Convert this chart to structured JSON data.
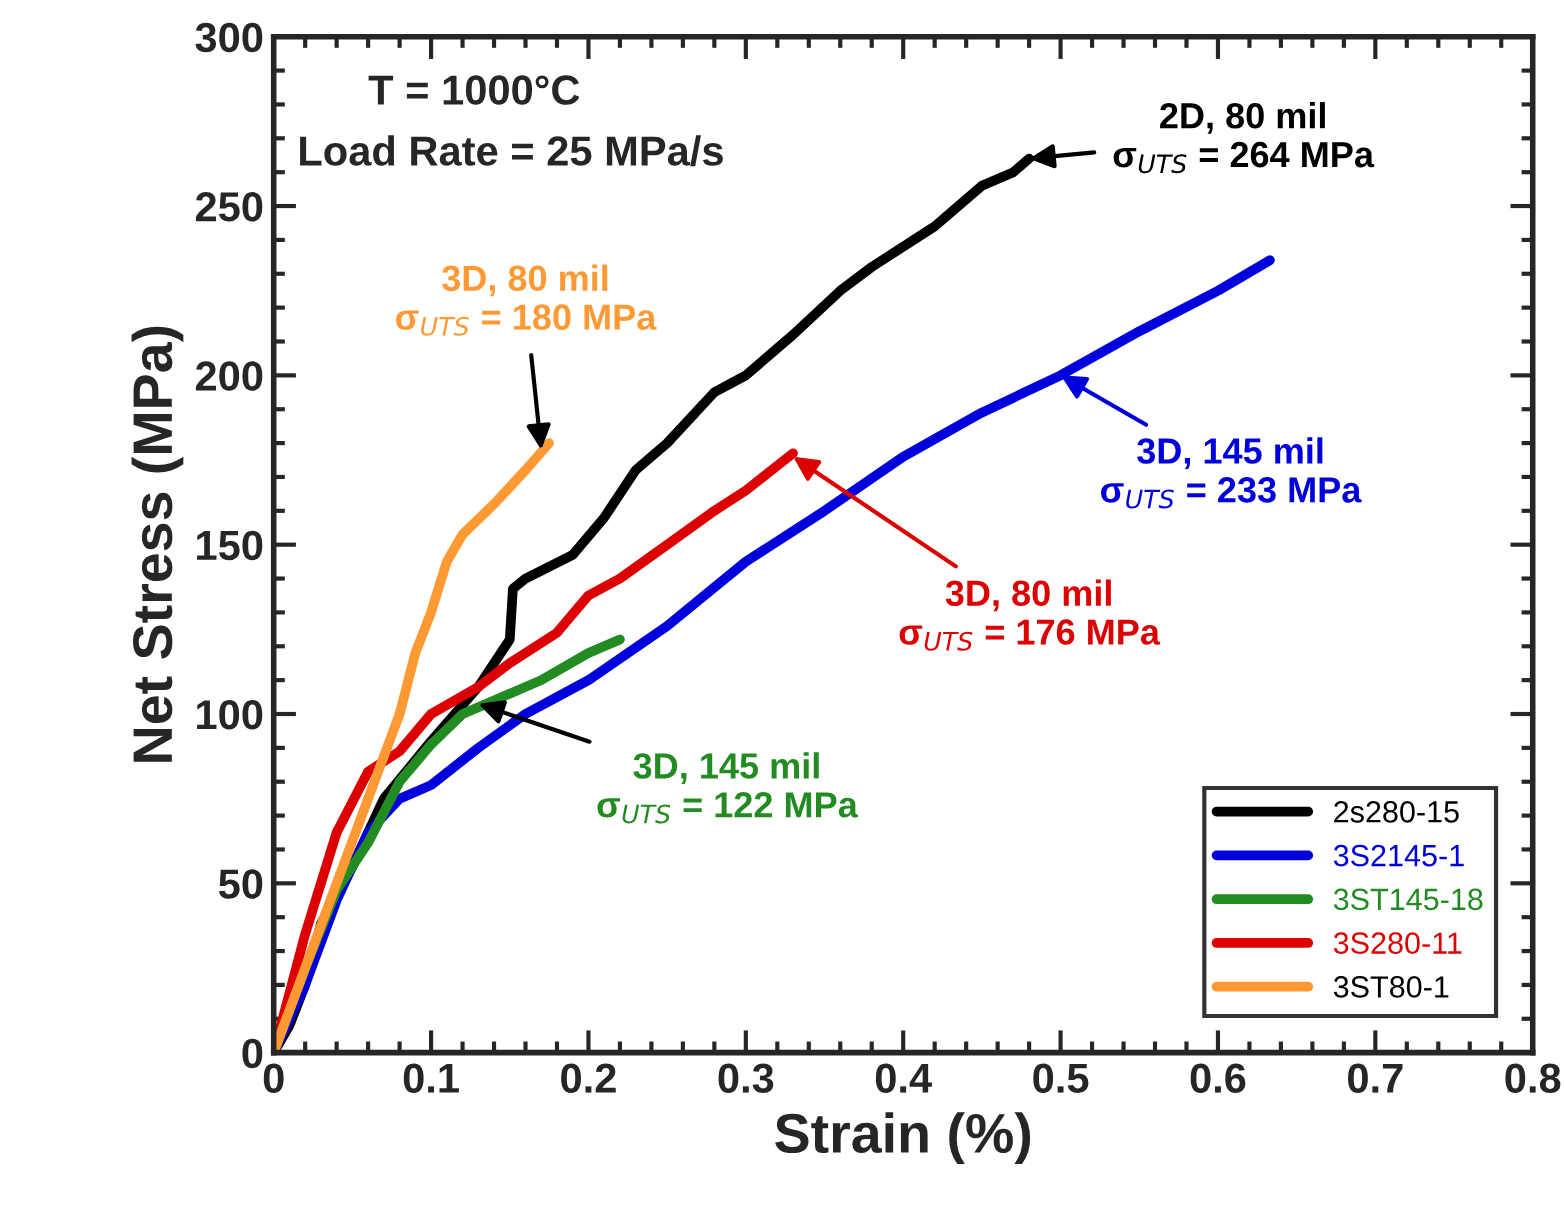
{
  "chart_data": {
    "type": "line",
    "xlabel": "Strain (%)",
    "ylabel": "Net Stress (MPa)",
    "xlim": [
      0,
      0.8
    ],
    "ylim": [
      0,
      300
    ],
    "xticks": [
      0,
      0.1,
      0.2,
      0.3,
      0.4,
      0.5,
      0.6,
      0.7,
      0.8
    ],
    "yticks": [
      0,
      50,
      100,
      150,
      200,
      250,
      300
    ],
    "grid": false,
    "legend": "bottom right",
    "marker": "none",
    "line_style": "solid",
    "series": [
      {
        "name": "2s280-15",
        "color": "#000000",
        "x": [
          0,
          0.01,
          0.02,
          0.03,
          0.05,
          0.07,
          0.1,
          0.13,
          0.15,
          0.152,
          0.16,
          0.19,
          0.21,
          0.23,
          0.25,
          0.28,
          0.3,
          0.33,
          0.36,
          0.38,
          0.42,
          0.45,
          0.47,
          0.48
        ],
        "values": [
          0,
          8,
          20,
          38,
          55,
          75,
          92,
          108,
          122,
          137,
          140,
          147,
          158,
          172,
          180,
          195,
          200,
          212,
          225,
          232,
          244,
          256,
          260,
          264
        ]
      },
      {
        "name": "3S2145-1",
        "color": "#0000dd",
        "x": [
          0,
          0.02,
          0.04,
          0.06,
          0.08,
          0.1,
          0.13,
          0.16,
          0.2,
          0.25,
          0.3,
          0.35,
          0.4,
          0.45,
          0.5,
          0.55,
          0.6,
          0.633
        ],
        "values": [
          0,
          20,
          45,
          65,
          75,
          79,
          90,
          100,
          110,
          126,
          145,
          160,
          176,
          189,
          200,
          213,
          225,
          234
        ]
      },
      {
        "name": "3ST145-18",
        "color": "#228b22",
        "x": [
          0,
          0.02,
          0.04,
          0.06,
          0.08,
          0.1,
          0.12,
          0.14,
          0.17,
          0.2,
          0.22
        ],
        "values": [
          0,
          25,
          48,
          62,
          80,
          91,
          100,
          104,
          110,
          118,
          122
        ]
      },
      {
        "name": "3S280-11",
        "color": "#dd0000",
        "x": [
          0,
          0.02,
          0.04,
          0.06,
          0.08,
          0.1,
          0.13,
          0.15,
          0.18,
          0.2,
          0.22,
          0.25,
          0.28,
          0.3,
          0.33
        ],
        "values": [
          0,
          35,
          65,
          83,
          89,
          100,
          108,
          115,
          124,
          135,
          140,
          150,
          160,
          166,
          177
        ]
      },
      {
        "name": "3ST80-1",
        "color": "#ff9933",
        "x": [
          0,
          0.02,
          0.04,
          0.06,
          0.08,
          0.09,
          0.1,
          0.11,
          0.12,
          0.14,
          0.16,
          0.175
        ],
        "values": [
          0,
          25,
          50,
          75,
          100,
          118,
          130,
          145,
          153,
          162,
          172,
          180
        ]
      }
    ],
    "annotations": [
      "T = 1000°C",
      "Load Rate = 25 MPa/s",
      {
        "text": "2D, 80 mil\nσ$_{UTS}$ = 264 MPa",
        "x": 0.48,
        "y": 264
      },
      {
        "text": "3D, 145 mil\nσ$_{UTS}$ = 233 MPa",
        "x": 0.5,
        "y": 200
      },
      {
        "text": "3D, 80 mil\nσ$_{UTS}$ = 176 MPa",
        "x": 0.33,
        "y": 176
      },
      {
        "text": "3D, 80 mil\nσ$_{UTS}$ = 180 MPa",
        "x": 0.17,
        "y": 178
      },
      {
        "text": "3D, 145 mil\nσ$_{UTS}$ = 122 MPa",
        "x": 0.13,
        "y": 103
      }
    ]
  }
}
